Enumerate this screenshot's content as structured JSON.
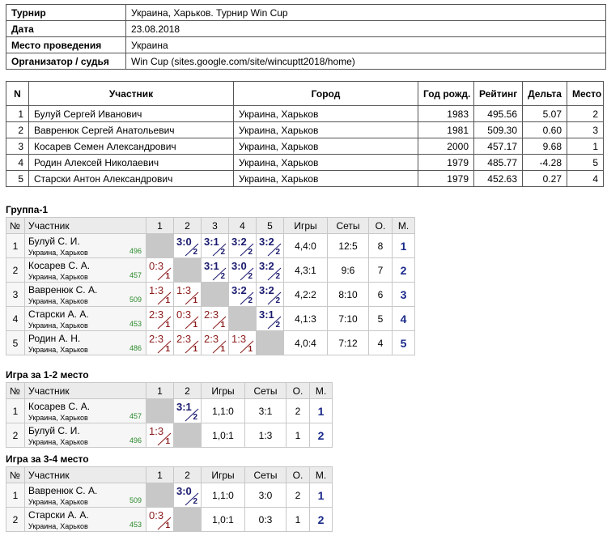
{
  "info": {
    "rows": [
      [
        "Турнир",
        "Украина, Харьков. Турнир Win Cup"
      ],
      [
        "Дата",
        "23.08.2018"
      ],
      [
        "Место проведения",
        "Украина"
      ],
      [
        "Организатор / судья",
        "Win Cup (sites.google.com/site/wincuptt2018/home)"
      ]
    ]
  },
  "participants": {
    "header": [
      "N",
      "Участник",
      "Город",
      "Год рожд.",
      "Рейтинг",
      "Дельта",
      "Место"
    ],
    "rows": [
      [
        "1",
        "Булуй Сергей Иванович",
        "Украина, Харьков",
        "1983",
        "495.56",
        "5.07",
        "2"
      ],
      [
        "2",
        "Вавренюк Сергей Анатольевич",
        "Украина, Харьков",
        "1981",
        "509.30",
        "0.60",
        "3"
      ],
      [
        "3",
        "Косарев Семен Александрович",
        "Украина, Харьков",
        "2000",
        "457.17",
        "9.68",
        "1"
      ],
      [
        "4",
        "Родин Алексей Николаевич",
        "Украина, Харьков",
        "1979",
        "485.77",
        "-4.28",
        "5"
      ],
      [
        "5",
        "Старски Антон Александрович",
        "Украина, Харьков",
        "1979",
        "452.63",
        "0.27",
        "4"
      ]
    ]
  },
  "groups": [
    {
      "title": "Группа-1",
      "header": [
        "№",
        "Участник",
        "1",
        "2",
        "3",
        "4",
        "5",
        "Игры",
        "Сеты",
        "О.",
        "М."
      ],
      "rows": [
        {
          "n": "1",
          "name": "Булуй С. И.",
          "city": "Украина, Харьков",
          "rating": "496",
          "results": [
            null,
            {
              "score": "3:0",
              "pts": "2"
            },
            {
              "score": "3:1",
              "pts": "2"
            },
            {
              "score": "3:2",
              "pts": "2"
            },
            {
              "score": "3:2",
              "pts": "2"
            }
          ],
          "games": "4,4:0",
          "sets": "12:5",
          "points": "8",
          "place": "1"
        },
        {
          "n": "2",
          "name": "Косарев С. А.",
          "city": "Украина, Харьков",
          "rating": "457",
          "results": [
            {
              "score": "0:3",
              "pts": "1"
            },
            null,
            {
              "score": "3:1",
              "pts": "2"
            },
            {
              "score": "3:0",
              "pts": "2"
            },
            {
              "score": "3:2",
              "pts": "2"
            }
          ],
          "games": "4,3:1",
          "sets": "9:6",
          "points": "7",
          "place": "2"
        },
        {
          "n": "3",
          "name": "Вавренюк С. А.",
          "city": "Украина, Харьков",
          "rating": "509",
          "results": [
            {
              "score": "1:3",
              "pts": "1"
            },
            {
              "score": "1:3",
              "pts": "1"
            },
            null,
            {
              "score": "3:2",
              "pts": "2"
            },
            {
              "score": "3:2",
              "pts": "2"
            }
          ],
          "games": "4,2:2",
          "sets": "8:10",
          "points": "6",
          "place": "3"
        },
        {
          "n": "4",
          "name": "Старски А. А.",
          "city": "Украина, Харьков",
          "rating": "453",
          "results": [
            {
              "score": "2:3",
              "pts": "1"
            },
            {
              "score": "0:3",
              "pts": "1"
            },
            {
              "score": "2:3",
              "pts": "1"
            },
            null,
            {
              "score": "3:1",
              "pts": "2"
            }
          ],
          "games": "4,1:3",
          "sets": "7:10",
          "points": "5",
          "place": "4"
        },
        {
          "n": "5",
          "name": "Родин А. Н.",
          "city": "Украина, Харьков",
          "rating": "486",
          "results": [
            {
              "score": "2:3",
              "pts": "1"
            },
            {
              "score": "2:3",
              "pts": "1"
            },
            {
              "score": "2:3",
              "pts": "1"
            },
            {
              "score": "1:3",
              "pts": "1"
            },
            null
          ],
          "games": "4,0:4",
          "sets": "7:12",
          "points": "4",
          "place": "5"
        }
      ]
    },
    {
      "title": "Игра за 1-2 место",
      "header": [
        "№",
        "Участник",
        "1",
        "2",
        "Игры",
        "Сеты",
        "О.",
        "М."
      ],
      "rows": [
        {
          "n": "1",
          "name": "Косарев С. А.",
          "city": "Украина, Харьков",
          "rating": "457",
          "results": [
            null,
            {
              "score": "3:1",
              "pts": "2"
            }
          ],
          "games": "1,1:0",
          "sets": "3:1",
          "points": "2",
          "place": "1"
        },
        {
          "n": "2",
          "name": "Булуй С. И.",
          "city": "Украина, Харьков",
          "rating": "496",
          "results": [
            {
              "score": "1:3",
              "pts": "1"
            },
            null
          ],
          "games": "1,0:1",
          "sets": "1:3",
          "points": "1",
          "place": "2"
        }
      ]
    },
    {
      "title": "Игра за 3-4 место",
      "header": [
        "№",
        "Участник",
        "1",
        "2",
        "Игры",
        "Сеты",
        "О.",
        "М."
      ],
      "rows": [
        {
          "n": "1",
          "name": "Вавренюк С. А.",
          "city": "Украина, Харьков",
          "rating": "509",
          "results": [
            null,
            {
              "score": "3:0",
              "pts": "2"
            }
          ],
          "games": "1,1:0",
          "sets": "3:0",
          "points": "2",
          "place": "1"
        },
        {
          "n": "2",
          "name": "Старски А. А.",
          "city": "Украина, Харьков",
          "rating": "453",
          "results": [
            {
              "score": "0:3",
              "pts": "1"
            },
            null
          ],
          "games": "1,0:1",
          "sets": "0:3",
          "points": "1",
          "place": "2"
        }
      ]
    }
  ]
}
